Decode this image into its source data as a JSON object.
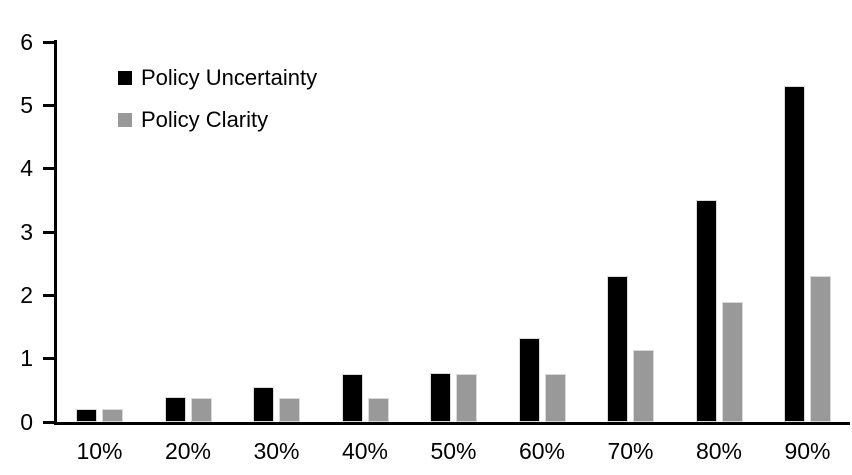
{
  "chart_data": {
    "type": "bar",
    "title": "",
    "xlabel": "",
    "ylabel": "",
    "categories": [
      "10%",
      "20%",
      "30%",
      "40%",
      "50%",
      "60%",
      "70%",
      "80%",
      "90%"
    ],
    "series": [
      {
        "name": "Policy Uncertainty",
        "color": "#000000",
        "values": [
          0.2,
          0.4,
          0.55,
          0.75,
          0.78,
          1.33,
          2.3,
          3.5,
          5.3
        ]
      },
      {
        "name": "Policy Clarity",
        "color": "#999999",
        "values": [
          0.2,
          0.38,
          0.38,
          0.38,
          0.76,
          0.76,
          1.13,
          1.9,
          2.3
        ]
      }
    ],
    "ylim": [
      0,
      6
    ],
    "yticks": [
      0,
      1,
      2,
      3,
      4,
      5,
      6
    ],
    "ytick_labels": [
      "0",
      "1",
      "2",
      "3",
      "4",
      "5",
      "6"
    ],
    "legend_position": "top-left",
    "grid": false,
    "axis_color": "#000000",
    "bar_stroke_color": "#d9d9d9",
    "background_color": "#ffffff"
  }
}
